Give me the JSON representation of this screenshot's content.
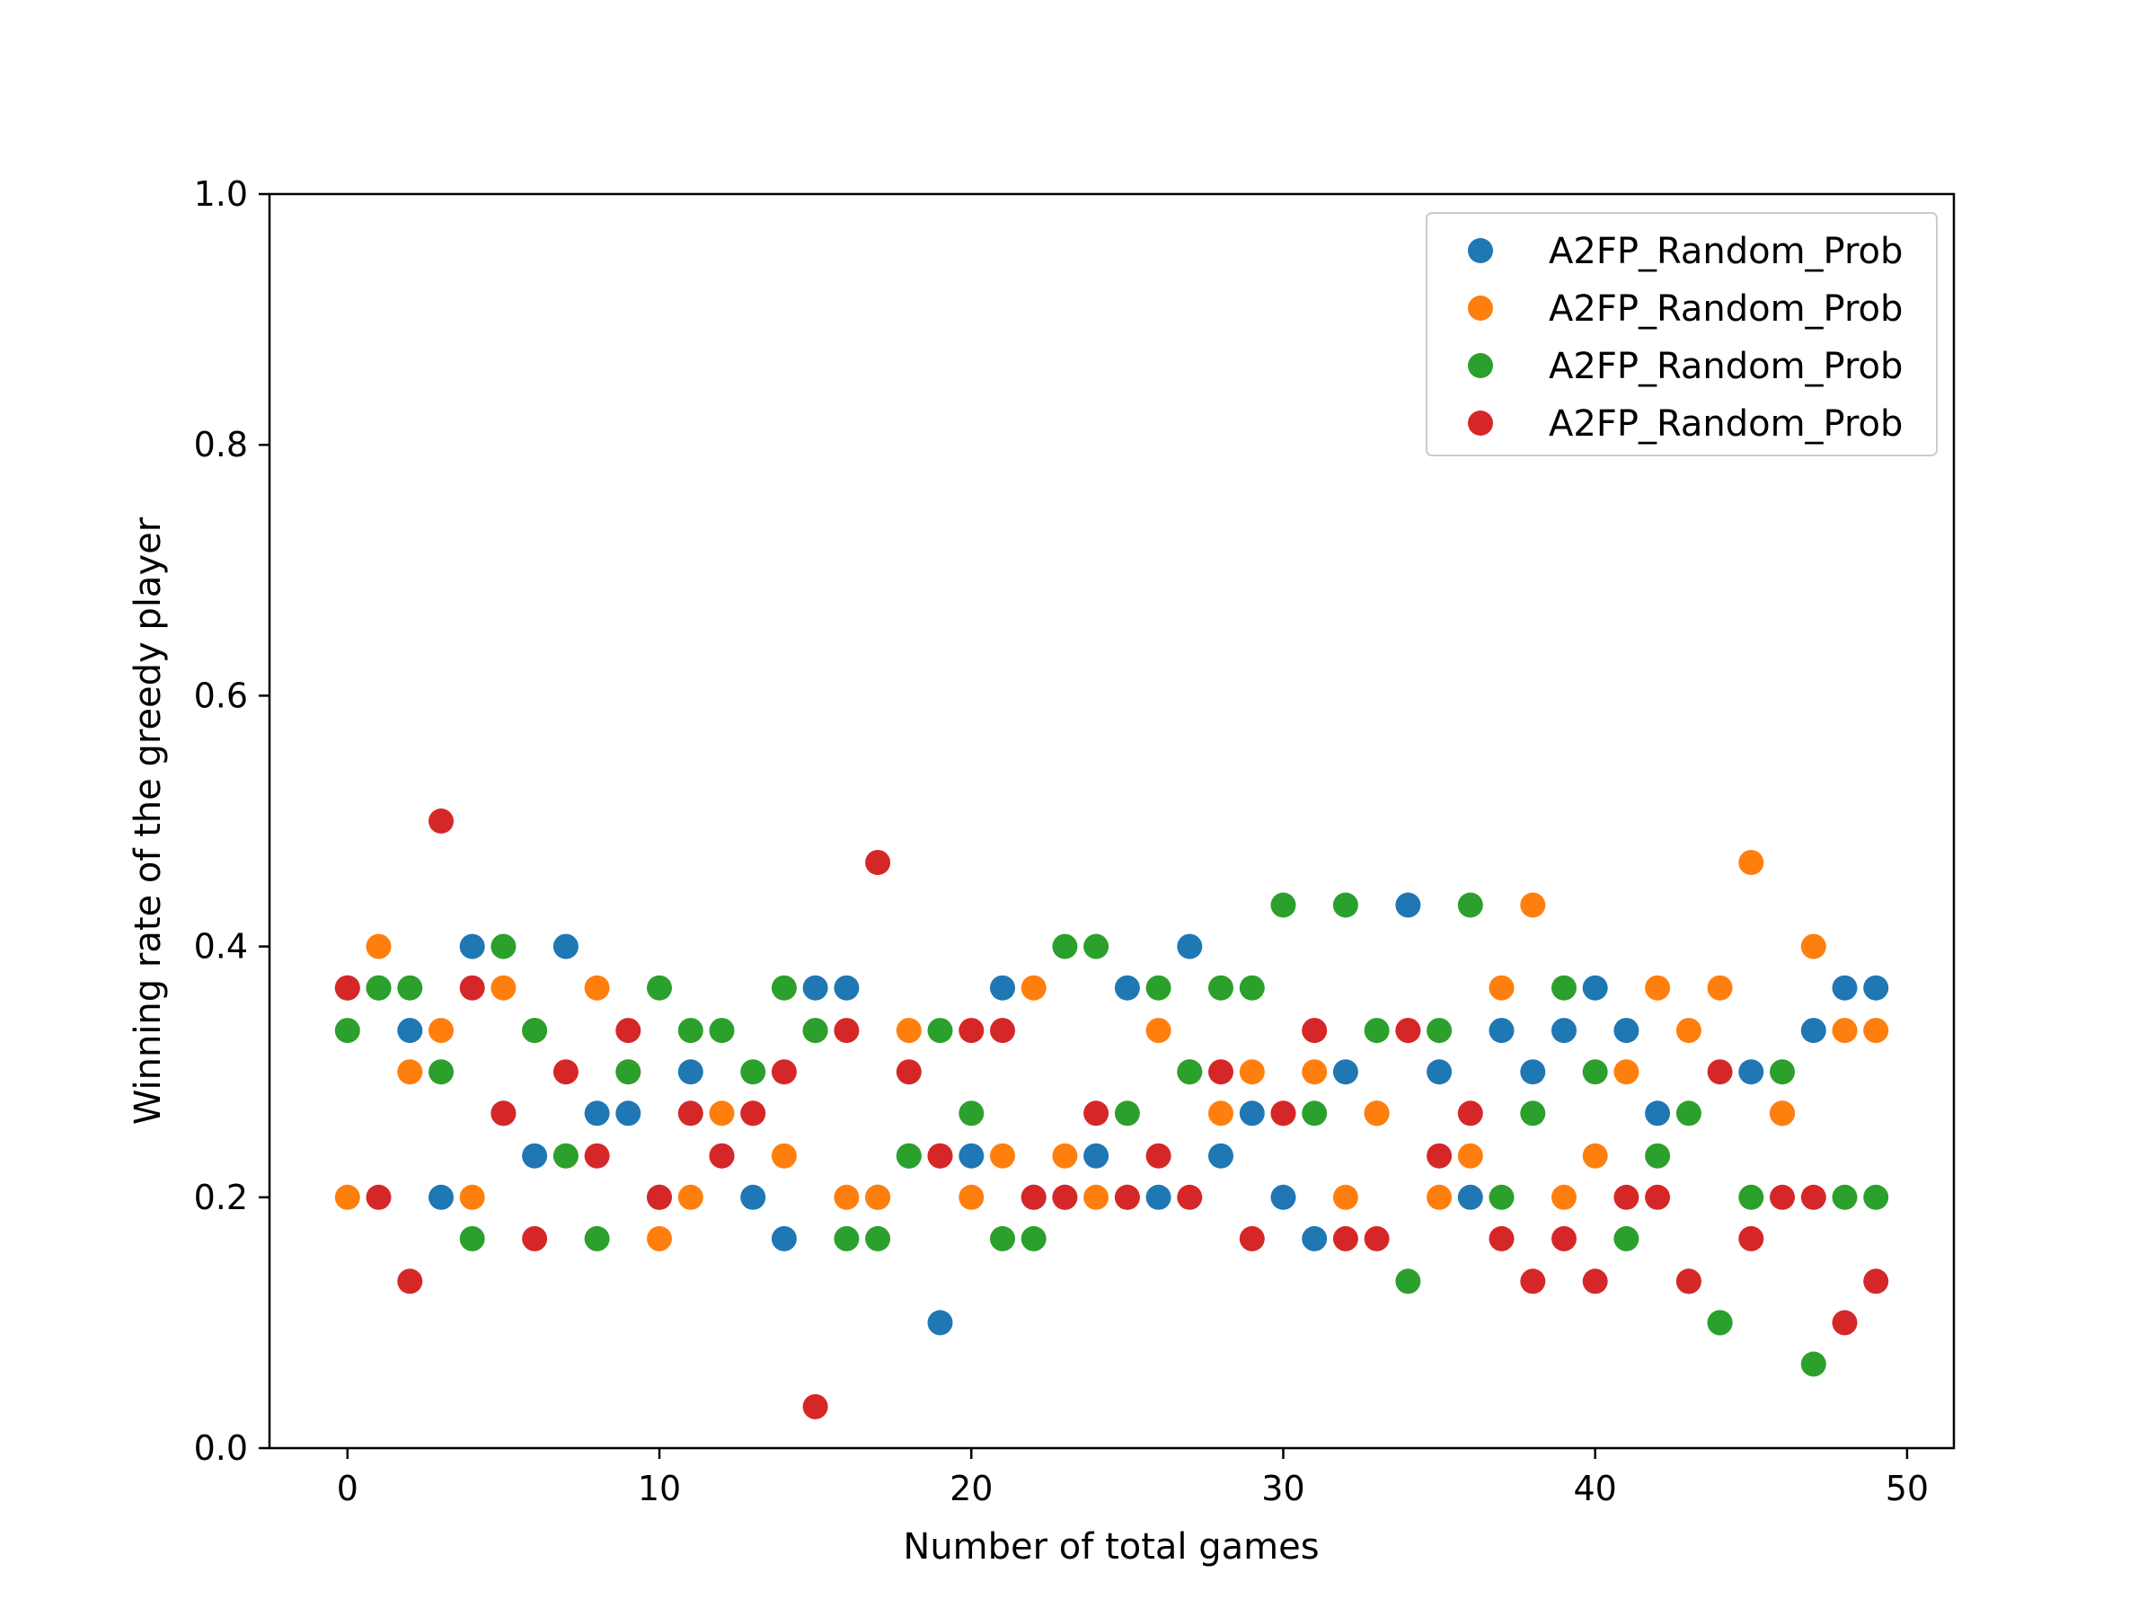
{
  "chart_data": {
    "type": "scatter",
    "title": "",
    "xlabel": "Number of total games",
    "ylabel": "Winning rate of the greedy player",
    "xlim": [
      -2.5,
      51.5
    ],
    "ylim": [
      0.0,
      1.0
    ],
    "xticks": [
      0,
      10,
      20,
      30,
      40,
      50
    ],
    "yticks": [
      0.0,
      0.2,
      0.4,
      0.6,
      0.8,
      1.0
    ],
    "xtick_labels": [
      "0",
      "10",
      "20",
      "30",
      "40",
      "50"
    ],
    "ytick_labels": [
      "0.0",
      "0.2",
      "0.4",
      "0.6",
      "0.8",
      "1.0"
    ],
    "grid": false,
    "legend_position": "top-right",
    "x": [
      0,
      1,
      2,
      3,
      4,
      5,
      6,
      7,
      8,
      9,
      10,
      11,
      12,
      13,
      14,
      15,
      16,
      17,
      18,
      19,
      20,
      21,
      22,
      23,
      24,
      25,
      26,
      27,
      28,
      29,
      30,
      31,
      32,
      33,
      34,
      35,
      36,
      37,
      38,
      39,
      40,
      41,
      42,
      43,
      44,
      45,
      46,
      47,
      48,
      49
    ],
    "series": [
      {
        "name": "A2FP_Random_Prob",
        "color": "#1f77b4",
        "values": [
          0.367,
          0.367,
          0.333,
          0.2,
          0.4,
          0.267,
          0.233,
          0.4,
          0.267,
          0.267,
          0.2,
          0.3,
          0.233,
          0.2,
          0.167,
          0.367,
          0.367,
          0.2,
          0.233,
          0.1,
          0.233,
          0.367,
          0.2,
          0.2,
          0.233,
          0.367,
          0.2,
          0.4,
          0.233,
          0.267,
          0.2,
          0.167,
          0.3,
          0.267,
          0.433,
          0.3,
          0.2,
          0.333,
          0.3,
          0.333,
          0.367,
          0.333,
          0.267,
          0.133,
          0.1,
          0.3,
          0.267,
          0.333,
          0.367,
          0.367
        ]
      },
      {
        "name": "A2FP_Random_Prob",
        "color": "#ff7f0e",
        "values": [
          0.2,
          0.4,
          0.3,
          0.333,
          0.2,
          0.367,
          0.333,
          0.233,
          0.367,
          0.3,
          0.167,
          0.2,
          0.267,
          0.267,
          0.233,
          0.333,
          0.2,
          0.2,
          0.333,
          0.233,
          0.2,
          0.233,
          0.367,
          0.233,
          0.2,
          0.2,
          0.333,
          0.3,
          0.267,
          0.3,
          0.267,
          0.3,
          0.2,
          0.267,
          0.333,
          0.2,
          0.233,
          0.367,
          0.433,
          0.2,
          0.233,
          0.3,
          0.367,
          0.333,
          0.367,
          0.467,
          0.267,
          0.4,
          0.333,
          0.333
        ]
      },
      {
        "name": "A2FP_Random_Prob",
        "color": "#2ca02c",
        "values": [
          0.333,
          0.367,
          0.367,
          0.3,
          0.167,
          0.4,
          0.333,
          0.233,
          0.167,
          0.3,
          0.367,
          0.333,
          0.333,
          0.3,
          0.367,
          0.333,
          0.167,
          0.167,
          0.233,
          0.333,
          0.267,
          0.167,
          0.167,
          0.4,
          0.4,
          0.267,
          0.367,
          0.3,
          0.367,
          0.367,
          0.433,
          0.267,
          0.433,
          0.333,
          0.133,
          0.333,
          0.433,
          0.2,
          0.267,
          0.367,
          0.3,
          0.167,
          0.233,
          0.267,
          0.1,
          0.2,
          0.3,
          0.067,
          0.2,
          0.2
        ]
      },
      {
        "name": "A2FP_Random_Prob",
        "color": "#d62728",
        "values": [
          0.367,
          0.2,
          0.133,
          0.5,
          0.367,
          0.267,
          0.167,
          0.3,
          0.233,
          0.333,
          0.2,
          0.267,
          0.233,
          0.267,
          0.3,
          0.033,
          0.333,
          0.467,
          0.3,
          0.233,
          0.333,
          0.333,
          0.2,
          0.2,
          0.267,
          0.2,
          0.233,
          0.2,
          0.3,
          0.167,
          0.267,
          0.333,
          0.167,
          0.167,
          0.333,
          0.233,
          0.267,
          0.167,
          0.133,
          0.167,
          0.133,
          0.2,
          0.2,
          0.133,
          0.3,
          0.167,
          0.2,
          0.2,
          0.1,
          0.133
        ]
      }
    ]
  }
}
